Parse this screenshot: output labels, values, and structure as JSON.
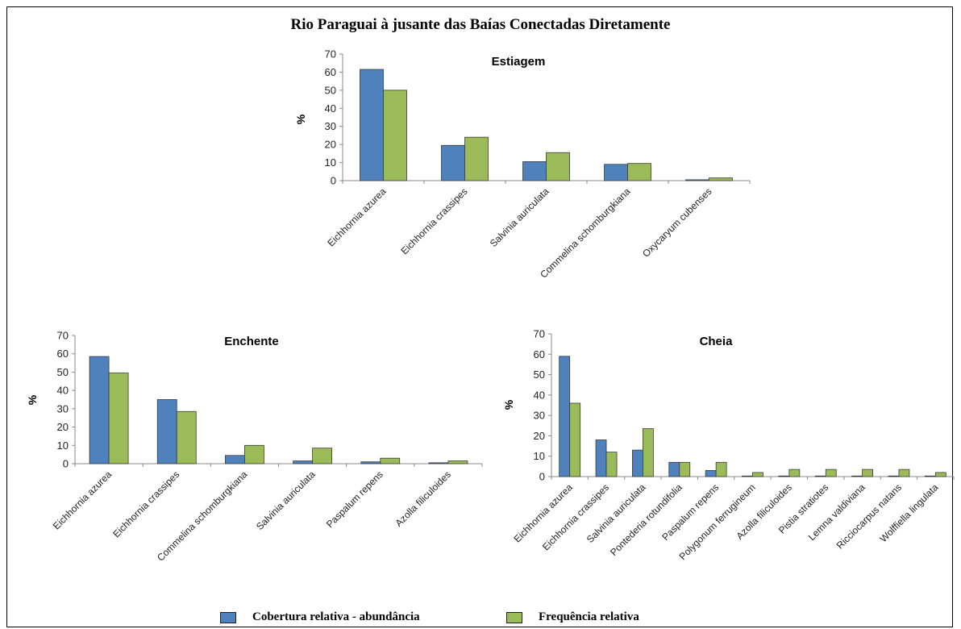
{
  "figure": {
    "title": "Rio Paraguai à jusante das Baías Conectadas Diretamente",
    "legend": [
      {
        "label": "Cobertura relativa - abundância",
        "color": "#4f81bd"
      },
      {
        "label": "Frequência relativa",
        "color": "#9bbb59"
      }
    ]
  },
  "chart_data": [
    {
      "type": "bar",
      "title": "Estiagem",
      "ylabel": "%",
      "ylim": [
        0,
        70
      ],
      "yticks": [
        0,
        10,
        20,
        30,
        40,
        50,
        60,
        70
      ],
      "categories": [
        "Eichhornia azurea",
        "Eichhornia crassipes",
        "Salvinia auriculata",
        "Commelina schomburgkiana",
        "Oxycaryum cubenses"
      ],
      "series": [
        {
          "name": "Cobertura relativa - abundância",
          "color": "#4f81bd",
          "values": [
            61.5,
            19.5,
            10.5,
            9,
            0.5
          ]
        },
        {
          "name": "Frequência relativa",
          "color": "#9bbb59",
          "values": [
            50,
            24,
            15.5,
            9.5,
            1.5
          ]
        }
      ]
    },
    {
      "type": "bar",
      "title": "Enchente",
      "ylabel": "%",
      "ylim": [
        0,
        70
      ],
      "yticks": [
        0,
        10,
        20,
        30,
        40,
        50,
        60,
        70
      ],
      "categories": [
        "Eichhornia azurea",
        "Eichhornia crassipes",
        "Commelina schomburgkiana",
        "Salvinia auriculata",
        "Paspalum repens",
        "Azolla filiculoides"
      ],
      "series": [
        {
          "name": "Cobertura relativa - abundância",
          "color": "#4f81bd",
          "values": [
            58.5,
            35,
            4.5,
            1.5,
            1,
            0.5
          ]
        },
        {
          "name": "Frequência relativa",
          "color": "#9bbb59",
          "values": [
            49.5,
            28.5,
            10,
            8.5,
            3,
            1.5
          ]
        }
      ]
    },
    {
      "type": "bar",
      "title": "Cheia",
      "ylabel": "%",
      "ylim": [
        0,
        70
      ],
      "yticks": [
        0,
        10,
        20,
        30,
        40,
        50,
        60,
        70
      ],
      "categories": [
        "Eichhornia azurea",
        "Eichhornia crassipes",
        "Salvinia auriculata",
        "Pontederia rotundifolia",
        "Paspalum repens",
        "Polygonum ferrugineum",
        "Azolla filiculoides",
        "Pistia stratiotes",
        "Lemna valdiviana",
        "Ricciocarpus natans",
        "Wolffiella lingulata"
      ],
      "series": [
        {
          "name": "Cobertura relativa - abundância",
          "color": "#4f81bd",
          "values": [
            59,
            18,
            13,
            7,
            3,
            0.3,
            0.3,
            0.3,
            0.3,
            0.3,
            0.3
          ]
        },
        {
          "name": "Frequência relativa",
          "color": "#9bbb59",
          "values": [
            36,
            12,
            23.5,
            7,
            7,
            2,
            3.5,
            3.5,
            3.5,
            3.5,
            2
          ]
        }
      ]
    }
  ]
}
